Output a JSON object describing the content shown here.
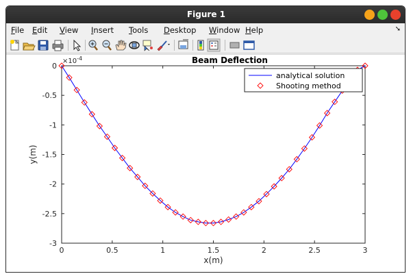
{
  "window": {
    "title": "Figure 1",
    "controls": {
      "minimize_color": "#f6a31a",
      "maximize_color": "#4ec43b",
      "close_color": "#e8412c"
    }
  },
  "menu": [
    {
      "label": "File",
      "mnemonic": "F"
    },
    {
      "label": "Edit",
      "mnemonic": "E"
    },
    {
      "label": "View",
      "mnemonic": "V"
    },
    {
      "label": "Insert",
      "mnemonic": "I"
    },
    {
      "label": "Tools",
      "mnemonic": "T"
    },
    {
      "label": "Desktop",
      "mnemonic": "D"
    },
    {
      "label": "Window",
      "mnemonic": "W"
    },
    {
      "label": "Help",
      "mnemonic": "H"
    }
  ],
  "menu_overflow_icon": "dock-arrow-icon",
  "toolbar": [
    "new-figure-icon",
    "open-file-icon",
    "save-icon",
    "print-icon",
    "edit-plot-arrow-icon",
    "zoom-in-icon",
    "zoom-out-icon",
    "pan-hand-icon",
    "rotate-3d-icon",
    "data-cursor-icon",
    "brush-icon",
    "link-plot-icon",
    "insert-colorbar-icon",
    "insert-legend-icon",
    "hide-plot-tools-icon",
    "show-plot-tools-icon"
  ],
  "chart_data": {
    "type": "line",
    "title": "Beam Deflection",
    "xlabel": "x(m)",
    "ylabel": "y(m)",
    "exponent_label": "×10",
    "exponent_power": "-4",
    "xlim": [
      0,
      3
    ],
    "ylim": [
      -3,
      0
    ],
    "xticks": [
      0,
      0.5,
      1,
      1.5,
      2,
      2.5,
      3
    ],
    "xtick_labels": [
      "0",
      "0.5",
      "1",
      "1.5",
      "2",
      "2.5",
      "3"
    ],
    "yticks": [
      0,
      -0.5,
      -1,
      -1.5,
      -2,
      -2.5,
      -3
    ],
    "ytick_labels": [
      "0",
      "-0.5",
      "-1",
      "-1.5",
      "-2",
      "-2.5",
      "-3"
    ],
    "grid": false,
    "legend_position": "top-right",
    "series": [
      {
        "name": "analytical solution",
        "style": "line",
        "color": "#0000ff",
        "x": [
          0,
          0.075,
          0.15,
          0.225,
          0.3,
          0.375,
          0.45,
          0.525,
          0.6,
          0.675,
          0.75,
          0.825,
          0.9,
          0.975,
          1.05,
          1.125,
          1.2,
          1.275,
          1.35,
          1.425,
          1.5,
          1.575,
          1.65,
          1.725,
          1.8,
          1.875,
          1.95,
          2.025,
          2.1,
          2.175,
          2.25,
          2.325,
          2.4,
          2.475,
          2.55,
          2.625,
          2.7,
          2.775,
          2.85,
          2.925,
          3
        ],
        "y": [
          0,
          -0.2,
          -0.41,
          -0.62,
          -0.82,
          -1.02,
          -1.2,
          -1.39,
          -1.56,
          -1.73,
          -1.88,
          -2.03,
          -2.16,
          -2.28,
          -2.39,
          -2.48,
          -2.55,
          -2.61,
          -2.64,
          -2.66,
          -2.66,
          -2.64,
          -2.6,
          -2.55,
          -2.48,
          -2.39,
          -2.29,
          -2.17,
          -2.04,
          -1.9,
          -1.75,
          -1.58,
          -1.4,
          -1.21,
          -1.01,
          -0.8,
          -0.61,
          -0.42,
          -0.24,
          -0.07,
          0
        ]
      },
      {
        "name": "Shooting method",
        "style": "markers",
        "marker": "diamond",
        "color": "#ff0000",
        "x": [
          0,
          0.075,
          0.15,
          0.225,
          0.3,
          0.375,
          0.45,
          0.525,
          0.6,
          0.675,
          0.75,
          0.825,
          0.9,
          0.975,
          1.05,
          1.125,
          1.2,
          1.275,
          1.35,
          1.425,
          1.5,
          1.575,
          1.65,
          1.725,
          1.8,
          1.875,
          1.95,
          2.025,
          2.1,
          2.175,
          2.25,
          2.325,
          2.4,
          2.475,
          2.55,
          2.625,
          2.7,
          2.775,
          2.85,
          2.925,
          3
        ],
        "y": [
          0,
          -0.2,
          -0.41,
          -0.62,
          -0.82,
          -1.02,
          -1.2,
          -1.39,
          -1.56,
          -1.73,
          -1.88,
          -2.03,
          -2.16,
          -2.28,
          -2.39,
          -2.48,
          -2.55,
          -2.61,
          -2.64,
          -2.66,
          -2.66,
          -2.64,
          -2.6,
          -2.55,
          -2.48,
          -2.39,
          -2.29,
          -2.17,
          -2.04,
          -1.9,
          -1.75,
          -1.58,
          -1.4,
          -1.21,
          -1.01,
          -0.8,
          -0.61,
          -0.42,
          -0.24,
          -0.07,
          0
        ]
      }
    ]
  }
}
